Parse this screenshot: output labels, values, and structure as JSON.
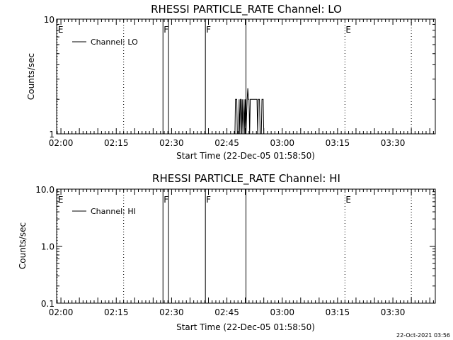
{
  "footer_timestamp": "22-Oct-2021 03:56",
  "chart_data": [
    {
      "type": "line",
      "title": "RHESSI PARTICLE_RATE Channel: LO",
      "xlabel": "Start Time (22-Dec-05 01:58:50)",
      "ylabel": "Counts/sec",
      "yscale": "log",
      "ylim": [
        1,
        10
      ],
      "xlim": [
        "01:58:50",
        "03:41:30"
      ],
      "x_ticks": [
        "02:00",
        "02:15",
        "02:30",
        "02:45",
        "03:00",
        "03:15",
        "03:30"
      ],
      "y_ticks": [
        "1",
        "10"
      ],
      "legend": {
        "placement": "top-left",
        "entries": [
          "Channel: LO"
        ]
      },
      "series": [
        {
          "name": "Channel: LO",
          "points": [
            [
              "02:47:10",
              1
            ],
            [
              "02:47:20",
              2
            ],
            [
              "02:47:40",
              2
            ],
            [
              "02:47:50",
              1
            ],
            [
              "02:48:10",
              1
            ],
            [
              "02:48:20",
              2
            ],
            [
              "02:48:30",
              1
            ],
            [
              "02:48:40",
              2
            ],
            [
              "02:48:50",
              2
            ],
            [
              "02:49:00",
              1
            ],
            [
              "02:49:10",
              2
            ],
            [
              "02:49:20",
              1
            ],
            [
              "02:49:40",
              2
            ],
            [
              "02:49:50",
              1
            ],
            [
              "02:50:00",
              2
            ],
            [
              "02:50:10",
              1
            ],
            [
              "02:50:30",
              2
            ],
            [
              "02:50:40",
              2.5
            ],
            [
              "02:50:50",
              2
            ],
            [
              "02:51:00",
              2
            ],
            [
              "02:51:10",
              1
            ],
            [
              "02:51:20",
              2
            ],
            [
              "02:52:00",
              2
            ],
            [
              "02:52:10",
              2
            ],
            [
              "02:53:10",
              2
            ],
            [
              "02:53:20",
              1
            ],
            [
              "02:53:30",
              2
            ],
            [
              "02:53:50",
              2
            ],
            [
              "02:54:00",
              1
            ],
            [
              "02:54:20",
              1
            ],
            [
              "02:54:30",
              2
            ],
            [
              "02:54:50",
              2
            ],
            [
              "02:55:00",
              1
            ]
          ]
        }
      ],
      "markers": [
        {
          "time": "01:59:00",
          "label": "E",
          "style": "dotted"
        },
        {
          "time": "02:17:00",
          "label": "",
          "style": "dotted"
        },
        {
          "time": "02:27:40",
          "label": "F",
          "style": "solid"
        },
        {
          "time": "02:29:10",
          "label": "",
          "style": "solid"
        },
        {
          "time": "02:39:10",
          "label": "F",
          "style": "solid"
        },
        {
          "time": "02:50:10",
          "label": "",
          "style": "solid"
        },
        {
          "time": "03:17:00",
          "label": "E",
          "style": "dotted"
        },
        {
          "time": "03:35:00",
          "label": "",
          "style": "dotted"
        }
      ]
    },
    {
      "type": "line",
      "title": "RHESSI PARTICLE_RATE Channel: HI",
      "xlabel": "Start Time (22-Dec-05 01:58:50)",
      "ylabel": "Counts/sec",
      "yscale": "log",
      "ylim": [
        0.1,
        10
      ],
      "xlim": [
        "01:58:50",
        "03:41:30"
      ],
      "x_ticks": [
        "02:00",
        "02:15",
        "02:30",
        "02:45",
        "03:00",
        "03:15",
        "03:30"
      ],
      "y_ticks": [
        "0.1",
        "1.0",
        "10.0"
      ],
      "legend": {
        "placement": "top-left",
        "entries": [
          "Channel: HI"
        ]
      },
      "series": [
        {
          "name": "Channel: HI",
          "points": []
        }
      ],
      "markers": [
        {
          "time": "01:59:00",
          "label": "E",
          "style": "dotted"
        },
        {
          "time": "02:17:00",
          "label": "",
          "style": "dotted"
        },
        {
          "time": "02:27:40",
          "label": "F",
          "style": "solid"
        },
        {
          "time": "02:29:10",
          "label": "",
          "style": "solid"
        },
        {
          "time": "02:39:10",
          "label": "F",
          "style": "solid"
        },
        {
          "time": "02:50:10",
          "label": "",
          "style": "solid"
        },
        {
          "time": "03:17:00",
          "label": "E",
          "style": "dotted"
        },
        {
          "time": "03:35:00",
          "label": "",
          "style": "dotted"
        }
      ]
    }
  ]
}
